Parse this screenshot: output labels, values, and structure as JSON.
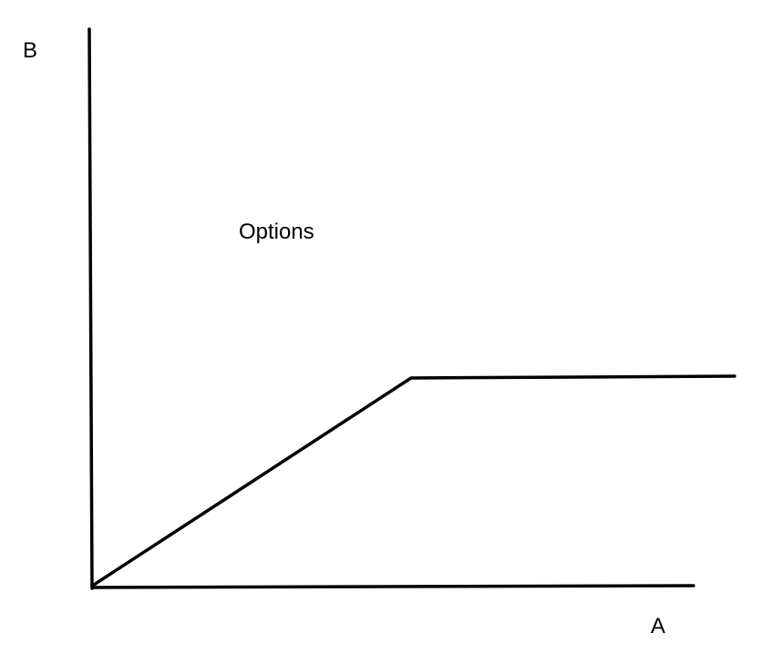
{
  "diagram": {
    "axis_x_label": "A",
    "axis_y_label": "B",
    "region_label": "Options",
    "line_color": "#000000"
  },
  "chart_data": {
    "type": "line",
    "xlabel": "A",
    "ylabel": "B",
    "annotations": [
      "Options"
    ],
    "series": [
      {
        "x": [
          0,
          0.53,
          1.08
        ],
        "y": [
          0,
          0.38,
          0.38
        ]
      }
    ],
    "xlim": [
      0,
      1
    ],
    "ylim": [
      0,
      1
    ],
    "grid": false
  }
}
